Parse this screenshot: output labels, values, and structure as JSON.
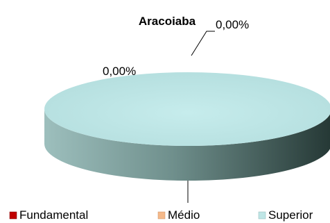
{
  "chart_data": {
    "type": "pie",
    "title": "Aracoiaba",
    "categories": [
      "Fundamental",
      "Médio",
      "Superior"
    ],
    "values": [
      0,
      0,
      100
    ],
    "data_labels": [
      "0,00%",
      "0,00%",
      ""
    ],
    "legend": {
      "placement": "bottom",
      "items": [
        {
          "label": "Fundamental",
          "color": "#c00000"
        },
        {
          "label": "Médio",
          "color": "#f5b98a"
        },
        {
          "label": "Superior",
          "color": "#bfe6e6"
        }
      ]
    },
    "colors": {
      "fundamental": "#c00000",
      "medio": "#f5b98a",
      "superior_top": "#bfe6e6",
      "superior_side_light": "#8fb0ae",
      "superior_side_dark": "#2b3e3b"
    }
  }
}
